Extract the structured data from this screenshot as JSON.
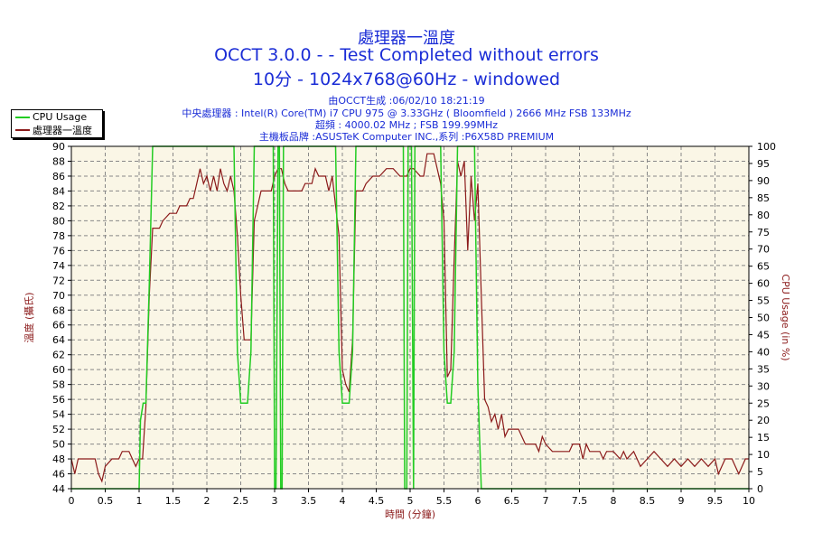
{
  "title": {
    "line1": "處理器一溫度",
    "line2": "OCCT 3.0.0 -  - Test Completed without errors",
    "line3": "10分 - 1024x768@60Hz - windowed"
  },
  "info": {
    "generated": "由OCCT生成 :06/02/10 18:21:19",
    "cpu": "中央處理器 : Intel(R) Core(TM) i7 CPU 975 @ 3.33GHz ( Bloomfield ) 2666 MHz FSB 133MHz",
    "freq": "超頻 : 4000.02 MHz ; FSB 199.99MHz",
    "board": "主機板品牌 :ASUSTeK Computer INC.,系列 :P6X58D PREMIUM"
  },
  "legend": {
    "cpu_usage": "CPU Usage",
    "temp": "處理器一溫度"
  },
  "colors": {
    "cpu_usage": "#22cc22",
    "temp": "#8b1a1a",
    "grid": "#888888",
    "plot_bg": "#faf6e6",
    "title": "#1a2cd6"
  },
  "chart_data": {
    "type": "line",
    "xlabel": "時間 (分鐘)",
    "ylabel_left": "溫度 (攝氏)",
    "ylabel_right": "CPU Usage (in %)",
    "xlim": [
      0,
      10
    ],
    "ylim_left": [
      44,
      90
    ],
    "ylim_right": [
      0,
      100
    ],
    "x_ticks": [
      "0",
      "0.5",
      "1",
      "1.5",
      "2",
      "2.5",
      "3",
      "3.5",
      "4",
      "4.5",
      "5",
      "5.5",
      "6",
      "6.5",
      "7",
      "7.5",
      "8",
      "8.5",
      "9",
      "9.5",
      "10"
    ],
    "y_ticks_left": [
      "44",
      "46",
      "48",
      "50",
      "52",
      "54",
      "56",
      "58",
      "60",
      "62",
      "64",
      "66",
      "68",
      "70",
      "72",
      "74",
      "76",
      "78",
      "80",
      "82",
      "84",
      "86",
      "88",
      "90"
    ],
    "y_ticks_right": [
      "0",
      "5",
      "10",
      "15",
      "20",
      "25",
      "30",
      "35",
      "40",
      "45",
      "50",
      "55",
      "60",
      "65",
      "70",
      "75",
      "80",
      "85",
      "90",
      "95",
      "100"
    ],
    "grid": true,
    "legend_position": "top-left",
    "series": [
      {
        "name": "處理器一溫度",
        "axis": "left",
        "points": [
          [
            0,
            48
          ],
          [
            0.05,
            46
          ],
          [
            0.1,
            48
          ],
          [
            0.35,
            48
          ],
          [
            0.4,
            46
          ],
          [
            0.45,
            45
          ],
          [
            0.5,
            47
          ],
          [
            0.6,
            48
          ],
          [
            0.7,
            48
          ],
          [
            0.75,
            49
          ],
          [
            0.85,
            49
          ],
          [
            0.9,
            48
          ],
          [
            0.95,
            47
          ],
          [
            1.0,
            48
          ],
          [
            1.05,
            48
          ],
          [
            1.1,
            55
          ],
          [
            1.15,
            70
          ],
          [
            1.2,
            79
          ],
          [
            1.3,
            79
          ],
          [
            1.35,
            80
          ],
          [
            1.45,
            81
          ],
          [
            1.55,
            81
          ],
          [
            1.6,
            82
          ],
          [
            1.7,
            82
          ],
          [
            1.75,
            83
          ],
          [
            1.8,
            83
          ],
          [
            1.85,
            85
          ],
          [
            1.9,
            87
          ],
          [
            1.95,
            85
          ],
          [
            2.0,
            86
          ],
          [
            2.05,
            84
          ],
          [
            2.1,
            86
          ],
          [
            2.15,
            84
          ],
          [
            2.2,
            87
          ],
          [
            2.25,
            85
          ],
          [
            2.3,
            84
          ],
          [
            2.35,
            86
          ],
          [
            2.4,
            84
          ],
          [
            2.45,
            78
          ],
          [
            2.5,
            70
          ],
          [
            2.55,
            64
          ],
          [
            2.6,
            64
          ],
          [
            2.65,
            64
          ],
          [
            2.7,
            80
          ],
          [
            2.75,
            82
          ],
          [
            2.8,
            84
          ],
          [
            2.85,
            84
          ],
          [
            2.9,
            84
          ],
          [
            2.95,
            84
          ],
          [
            3.0,
            86
          ],
          [
            3.05,
            87
          ],
          [
            3.1,
            87
          ],
          [
            3.15,
            85
          ],
          [
            3.2,
            84
          ],
          [
            3.3,
            84
          ],
          [
            3.4,
            84
          ],
          [
            3.45,
            85
          ],
          [
            3.55,
            85
          ],
          [
            3.6,
            87
          ],
          [
            3.65,
            86
          ],
          [
            3.75,
            86
          ],
          [
            3.8,
            84
          ],
          [
            3.85,
            86
          ],
          [
            3.9,
            82
          ],
          [
            3.95,
            78
          ],
          [
            4.0,
            60
          ],
          [
            4.05,
            58
          ],
          [
            4.1,
            57
          ],
          [
            4.15,
            64
          ],
          [
            4.2,
            84
          ],
          [
            4.3,
            84
          ],
          [
            4.35,
            85
          ],
          [
            4.45,
            86
          ],
          [
            4.55,
            86
          ],
          [
            4.65,
            87
          ],
          [
            4.75,
            87
          ],
          [
            4.85,
            86
          ],
          [
            4.95,
            86
          ],
          [
            5.0,
            87
          ],
          [
            5.05,
            87
          ],
          [
            5.15,
            86
          ],
          [
            5.2,
            86
          ],
          [
            5.25,
            89
          ],
          [
            5.35,
            89
          ],
          [
            5.4,
            87
          ],
          [
            5.45,
            85
          ],
          [
            5.5,
            80
          ],
          [
            5.55,
            59
          ],
          [
            5.6,
            60
          ],
          [
            5.65,
            75
          ],
          [
            5.7,
            88
          ],
          [
            5.75,
            86
          ],
          [
            5.8,
            88
          ],
          [
            5.85,
            76
          ],
          [
            5.9,
            86
          ],
          [
            5.95,
            80
          ],
          [
            6.0,
            85
          ],
          [
            6.05,
            70
          ],
          [
            6.1,
            56
          ],
          [
            6.15,
            55
          ],
          [
            6.2,
            53
          ],
          [
            6.25,
            54
          ],
          [
            6.3,
            52
          ],
          [
            6.35,
            54
          ],
          [
            6.4,
            51
          ],
          [
            6.45,
            52
          ],
          [
            6.6,
            52
          ],
          [
            6.7,
            50
          ],
          [
            6.85,
            50
          ],
          [
            6.9,
            49
          ],
          [
            6.95,
            51
          ],
          [
            7.0,
            50
          ],
          [
            7.1,
            49
          ],
          [
            7.2,
            49
          ],
          [
            7.35,
            49
          ],
          [
            7.4,
            50
          ],
          [
            7.5,
            50
          ],
          [
            7.55,
            48
          ],
          [
            7.6,
            50
          ],
          [
            7.65,
            49
          ],
          [
            7.8,
            49
          ],
          [
            7.85,
            48
          ],
          [
            7.9,
            49
          ],
          [
            8.0,
            49
          ],
          [
            8.1,
            48
          ],
          [
            8.15,
            49
          ],
          [
            8.2,
            48
          ],
          [
            8.3,
            49
          ],
          [
            8.4,
            47
          ],
          [
            8.5,
            48
          ],
          [
            8.6,
            49
          ],
          [
            8.7,
            48
          ],
          [
            8.8,
            47
          ],
          [
            8.9,
            48
          ],
          [
            9.0,
            47
          ],
          [
            9.1,
            48
          ],
          [
            9.2,
            47
          ],
          [
            9.3,
            48
          ],
          [
            9.4,
            47
          ],
          [
            9.5,
            48
          ],
          [
            9.55,
            46
          ],
          [
            9.65,
            48
          ],
          [
            9.75,
            48
          ],
          [
            9.8,
            47
          ],
          [
            9.85,
            46
          ],
          [
            9.9,
            47
          ],
          [
            9.95,
            48
          ],
          [
            10.0,
            48
          ]
        ]
      },
      {
        "name": "CPU Usage",
        "axis": "right",
        "points": [
          [
            0,
            0
          ],
          [
            1.0,
            0
          ],
          [
            1.02,
            20
          ],
          [
            1.06,
            25
          ],
          [
            1.1,
            25
          ],
          [
            1.15,
            60
          ],
          [
            1.2,
            100
          ],
          [
            1.25,
            100
          ],
          [
            2.4,
            100
          ],
          [
            2.45,
            40
          ],
          [
            2.5,
            25
          ],
          [
            2.6,
            25
          ],
          [
            2.65,
            40
          ],
          [
            2.7,
            100
          ],
          [
            2.82,
            100
          ],
          [
            2.98,
            100
          ],
          [
            3.0,
            0
          ],
          [
            3.02,
            0
          ],
          [
            3.05,
            100
          ],
          [
            3.07,
            100
          ],
          [
            3.09,
            0
          ],
          [
            3.11,
            0
          ],
          [
            3.13,
            100
          ],
          [
            3.9,
            100
          ],
          [
            3.95,
            40
          ],
          [
            4.0,
            25
          ],
          [
            4.1,
            25
          ],
          [
            4.15,
            40
          ],
          [
            4.2,
            100
          ],
          [
            4.9,
            100
          ],
          [
            4.92,
            0
          ],
          [
            4.95,
            0
          ],
          [
            4.97,
            100
          ],
          [
            5.02,
            100
          ],
          [
            5.05,
            0
          ],
          [
            5.07,
            100
          ],
          [
            5.45,
            100
          ],
          [
            5.5,
            40
          ],
          [
            5.55,
            25
          ],
          [
            5.6,
            25
          ],
          [
            5.65,
            40
          ],
          [
            5.7,
            100
          ],
          [
            5.95,
            100
          ],
          [
            6.0,
            30
          ],
          [
            6.05,
            0
          ],
          [
            10.0,
            0
          ]
        ]
      }
    ]
  }
}
